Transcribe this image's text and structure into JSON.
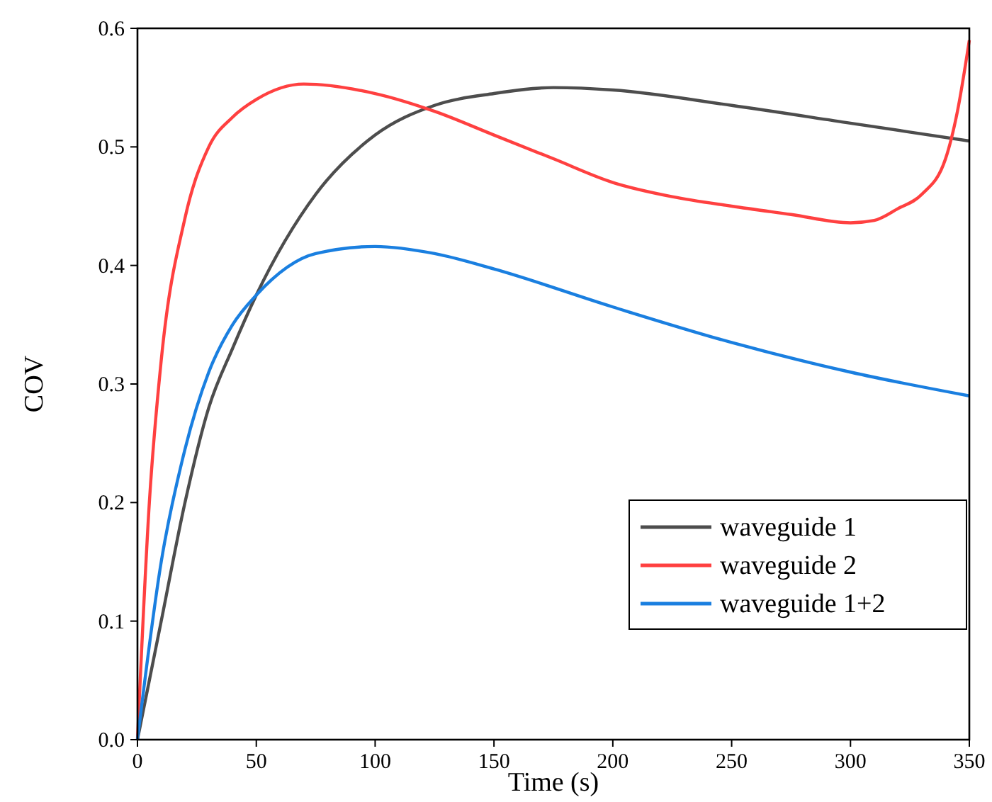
{
  "chart_data": {
    "type": "line",
    "xlabel": "Time (s)",
    "ylabel": "COV",
    "xlim": [
      0,
      350
    ],
    "ylim": [
      0,
      0.6
    ],
    "xticks": [
      0,
      50,
      100,
      150,
      200,
      250,
      300,
      350
    ],
    "yticks": [
      {
        "value": 0,
        "label": "0.0"
      },
      0.1,
      0.2,
      0.3,
      0.4,
      0.5,
      0.6
    ],
    "legend": "bottom right",
    "grid": false,
    "marker": "none",
    "line_style": "solid",
    "series": [
      {
        "name": "waveguide 1",
        "color": "#4d4d4d",
        "x": [
          0,
          10,
          20,
          30,
          40,
          50,
          75,
          100,
          125,
          150,
          175,
          200,
          250,
          300,
          350
        ],
        "values": [
          0,
          0.1,
          0.2,
          0.28,
          0.33,
          0.375,
          0.46,
          0.51,
          0.535,
          0.545,
          0.55,
          0.548,
          0.535,
          0.52,
          0.505
        ]
      },
      {
        "name": "waveguide 2",
        "color": "#ff4040",
        "x": [
          0,
          5,
          10,
          20,
          30,
          40,
          50,
          70,
          100,
          125,
          150,
          175,
          200,
          225,
          250,
          275,
          300,
          310,
          320,
          330,
          340,
          345,
          350
        ],
        "values": [
          0,
          0.2,
          0.32,
          0.44,
          0.5,
          0.525,
          0.54,
          0.553,
          0.545,
          0.53,
          0.51,
          0.49,
          0.47,
          0.458,
          0.45,
          0.443,
          0.436,
          0.438,
          0.448,
          0.46,
          0.49,
          0.53,
          0.59
        ]
      },
      {
        "name": "waveguide 1+2",
        "color": "#1a7fe0",
        "x": [
          0,
          10,
          20,
          30,
          40,
          50,
          75,
          100,
          125,
          150,
          200,
          250,
          300,
          350
        ],
        "values": [
          0,
          0.15,
          0.245,
          0.31,
          0.35,
          0.375,
          0.41,
          0.416,
          0.41,
          0.397,
          0.365,
          0.335,
          0.31,
          0.29
        ]
      }
    ]
  }
}
